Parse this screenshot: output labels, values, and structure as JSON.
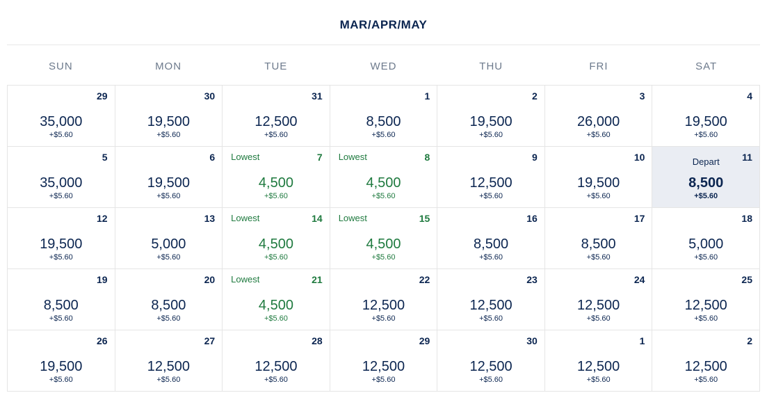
{
  "header": {
    "title": "MAR/APR/MAY"
  },
  "days_of_week": [
    "SUN",
    "MON",
    "TUE",
    "WED",
    "THU",
    "FRI",
    "SAT"
  ],
  "fee_label": "+$5.60",
  "lowest_label": "Lowest",
  "depart_label": "Depart",
  "colors": {
    "text_primary": "#0b2550",
    "text_muted": "#6d7a8c",
    "lowest": "#1f7a3f",
    "border": "#e5e5e5",
    "selected_bg": "#eaedf3",
    "background": "#ffffff"
  },
  "calendar": {
    "rows": [
      [
        {
          "day": "29",
          "price": "35,000",
          "fee": "+$5.60"
        },
        {
          "day": "30",
          "price": "19,500",
          "fee": "+$5.60"
        },
        {
          "day": "31",
          "price": "12,500",
          "fee": "+$5.60"
        },
        {
          "day": "1",
          "price": "8,500",
          "fee": "+$5.60"
        },
        {
          "day": "2",
          "price": "19,500",
          "fee": "+$5.60"
        },
        {
          "day": "3",
          "price": "26,000",
          "fee": "+$5.60"
        },
        {
          "day": "4",
          "price": "19,500",
          "fee": "+$5.60"
        }
      ],
      [
        {
          "day": "5",
          "price": "35,000",
          "fee": "+$5.60"
        },
        {
          "day": "6",
          "price": "19,500",
          "fee": "+$5.60"
        },
        {
          "day": "7",
          "price": "4,500",
          "fee": "+$5.60",
          "tag": "Lowest",
          "lowest": true
        },
        {
          "day": "8",
          "price": "4,500",
          "fee": "+$5.60",
          "tag": "Lowest",
          "lowest": true
        },
        {
          "day": "9",
          "price": "12,500",
          "fee": "+$5.60"
        },
        {
          "day": "10",
          "price": "19,500",
          "fee": "+$5.60"
        },
        {
          "day": "11",
          "price": "8,500",
          "fee": "+$5.60",
          "tag": "Depart",
          "selected": true
        }
      ],
      [
        {
          "day": "12",
          "price": "19,500",
          "fee": "+$5.60"
        },
        {
          "day": "13",
          "price": "5,000",
          "fee": "+$5.60"
        },
        {
          "day": "14",
          "price": "4,500",
          "fee": "+$5.60",
          "tag": "Lowest",
          "lowest": true
        },
        {
          "day": "15",
          "price": "4,500",
          "fee": "+$5.60",
          "tag": "Lowest",
          "lowest": true
        },
        {
          "day": "16",
          "price": "8,500",
          "fee": "+$5.60"
        },
        {
          "day": "17",
          "price": "8,500",
          "fee": "+$5.60"
        },
        {
          "day": "18",
          "price": "5,000",
          "fee": "+$5.60"
        }
      ],
      [
        {
          "day": "19",
          "price": "8,500",
          "fee": "+$5.60"
        },
        {
          "day": "20",
          "price": "8,500",
          "fee": "+$5.60"
        },
        {
          "day": "21",
          "price": "4,500",
          "fee": "+$5.60",
          "tag": "Lowest",
          "lowest": true
        },
        {
          "day": "22",
          "price": "12,500",
          "fee": "+$5.60"
        },
        {
          "day": "23",
          "price": "12,500",
          "fee": "+$5.60"
        },
        {
          "day": "24",
          "price": "12,500",
          "fee": "+$5.60"
        },
        {
          "day": "25",
          "price": "12,500",
          "fee": "+$5.60"
        }
      ],
      [
        {
          "day": "26",
          "price": "19,500",
          "fee": "+$5.60"
        },
        {
          "day": "27",
          "price": "12,500",
          "fee": "+$5.60"
        },
        {
          "day": "28",
          "price": "12,500",
          "fee": "+$5.60"
        },
        {
          "day": "29",
          "price": "12,500",
          "fee": "+$5.60"
        },
        {
          "day": "30",
          "price": "12,500",
          "fee": "+$5.60"
        },
        {
          "day": "1",
          "price": "12,500",
          "fee": "+$5.60"
        },
        {
          "day": "2",
          "price": "12,500",
          "fee": "+$5.60"
        }
      ]
    ]
  }
}
